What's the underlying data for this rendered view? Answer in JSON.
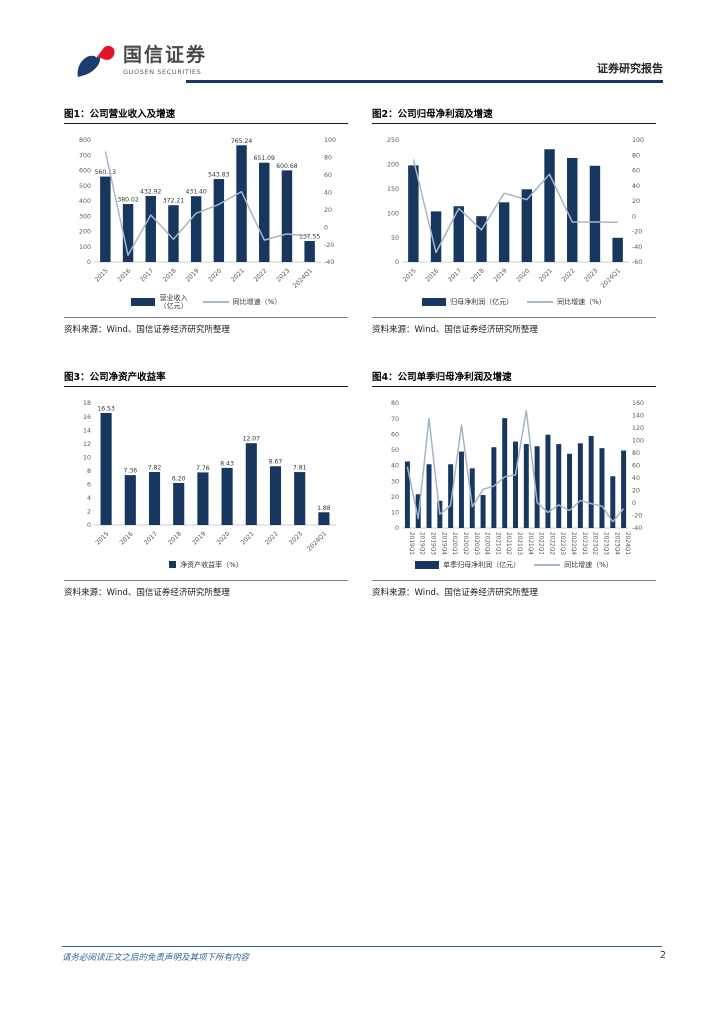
{
  "header": {
    "logo_text": "国信证券",
    "logo_subtext": "GUOSEN SECURITIES",
    "report_type": "证券研究报告"
  },
  "footer": {
    "disclaimer": "请务必阅读正文之后的免责声明及其项下所有内容",
    "page_number": "2"
  },
  "colors": {
    "bar": "#17375E",
    "line": "#A6B5C9",
    "accent_rule": "#17375E",
    "footer_blue": "#31639C",
    "logo_blue": "#1B3D6E",
    "logo_red": "#E8112D",
    "axis_text": "#595959"
  },
  "chart_data": [
    {
      "id": "fig1",
      "title": "图1：公司营业收入及增速",
      "type": "bar",
      "categories": [
        "2015",
        "2016",
        "2017",
        "2018",
        "2019",
        "2020",
        "2021",
        "2022",
        "2023",
        "2024Q1"
      ],
      "series": [
        {
          "name": "营业收入（亿元）",
          "type": "bar",
          "values": [
            560.13,
            380.02,
            432.92,
            372.21,
            431.4,
            543.83,
            765.24,
            651.09,
            600.68,
            137.55
          ],
          "data_labels": true,
          "axis": "left"
        },
        {
          "name": "同比增速（%）",
          "type": "line",
          "values": [
            86.9,
            -32.2,
            13.9,
            -14.0,
            15.9,
            26.1,
            40.7,
            -14.9,
            -7.7,
            -10.4
          ],
          "data_labels": false,
          "axis": "right"
        }
      ],
      "left_axis": {
        "min": 0,
        "max": 800,
        "step": 100
      },
      "right_axis": {
        "min": -40,
        "max": 100,
        "step": 20
      },
      "x_label_rotation": -45,
      "grid": false,
      "legend_position": "bottom",
      "source": "资料来源：Wind、国信证券经济研究所整理"
    },
    {
      "id": "fig2",
      "title": "图2：公司归母净利润及增速",
      "type": "bar",
      "categories": [
        "2015",
        "2016",
        "2017",
        "2018",
        "2019",
        "2020",
        "2021",
        "2022",
        "2023",
        "2024Q1"
      ],
      "series": [
        {
          "name": "归母净利润（亿元）",
          "type": "bar",
          "values": [
            198.0,
            103.7,
            114.3,
            93.9,
            122.3,
            149.0,
            231.0,
            213.2,
            197.2,
            49.6
          ],
          "data_labels": false,
          "axis": "left"
        },
        {
          "name": "同比增速（%）",
          "type": "line",
          "values": [
            74.6,
            -47.6,
            10.3,
            -17.9,
            30.2,
            21.9,
            55.0,
            -7.7,
            -7.5,
            -8.0
          ],
          "data_labels": false,
          "axis": "right"
        }
      ],
      "left_axis": {
        "min": 0,
        "max": 250,
        "step": 50
      },
      "right_axis": {
        "min": -60,
        "max": 100,
        "step": 20
      },
      "x_label_rotation": -45,
      "grid": false,
      "legend_position": "bottom",
      "source": "资料来源：Wind、国信证券经济研究所整理"
    },
    {
      "id": "fig3",
      "title": "图3：公司净资产收益率",
      "type": "bar",
      "categories": [
        "2015",
        "2016",
        "2017",
        "2018",
        "2019",
        "2020",
        "2021",
        "2022",
        "2023",
        "2024Q1"
      ],
      "series": [
        {
          "name": "净资产收益率（%）",
          "type": "bar",
          "values": [
            16.53,
            7.36,
            7.82,
            6.2,
            7.76,
            8.43,
            12.07,
            8.67,
            7.81,
            1.88
          ],
          "data_labels": true,
          "axis": "left"
        }
      ],
      "left_axis": {
        "min": 0,
        "max": 18,
        "step": 2
      },
      "x_label_rotation": -45,
      "grid": false,
      "legend_position": "bottom",
      "source": "资料来源：Wind、国信证券经济研究所整理"
    },
    {
      "id": "fig4",
      "title": "图4：公司单季归母净利润及增速",
      "type": "bar",
      "categories": [
        "2019Q1",
        "2019Q2",
        "2019Q3",
        "2019Q4",
        "2020Q1",
        "2020Q2",
        "2020Q3",
        "2020Q4",
        "2021Q1",
        "2021Q2",
        "2021Q3",
        "2021Q4",
        "2022Q1",
        "2022Q2",
        "2022Q3",
        "2022Q4",
        "2023Q1",
        "2023Q2",
        "2023Q3",
        "2023Q4",
        "2024Q1"
      ],
      "series": [
        {
          "name": "单季归母净利润（亿元）",
          "type": "bar",
          "values": [
            42.6,
            21.6,
            40.8,
            17.4,
            40.8,
            48.9,
            38.2,
            21.1,
            51.7,
            70.3,
            55.3,
            53.7,
            52.3,
            59.7,
            53.7,
            47.5,
            54.2,
            58.9,
            51.1,
            33.1,
            49.6
          ],
          "data_labels": false,
          "axis": "left"
        },
        {
          "name": "同比增速（%）",
          "type": "line",
          "values": [
            58,
            -25,
            135,
            -18,
            -4,
            125,
            -6,
            22,
            27,
            42,
            45,
            148,
            1,
            -15,
            -3,
            -12,
            4,
            -1,
            -5,
            -30,
            -9
          ],
          "data_labels": false,
          "axis": "right"
        }
      ],
      "left_axis": {
        "min": 0,
        "max": 80,
        "step": 10
      },
      "right_axis": {
        "min": -40,
        "max": 160,
        "step": 20
      },
      "x_label_rotation": 90,
      "grid": false,
      "legend_position": "bottom",
      "source": "资料来源：Wind、国信证券经济研究所整理"
    }
  ]
}
